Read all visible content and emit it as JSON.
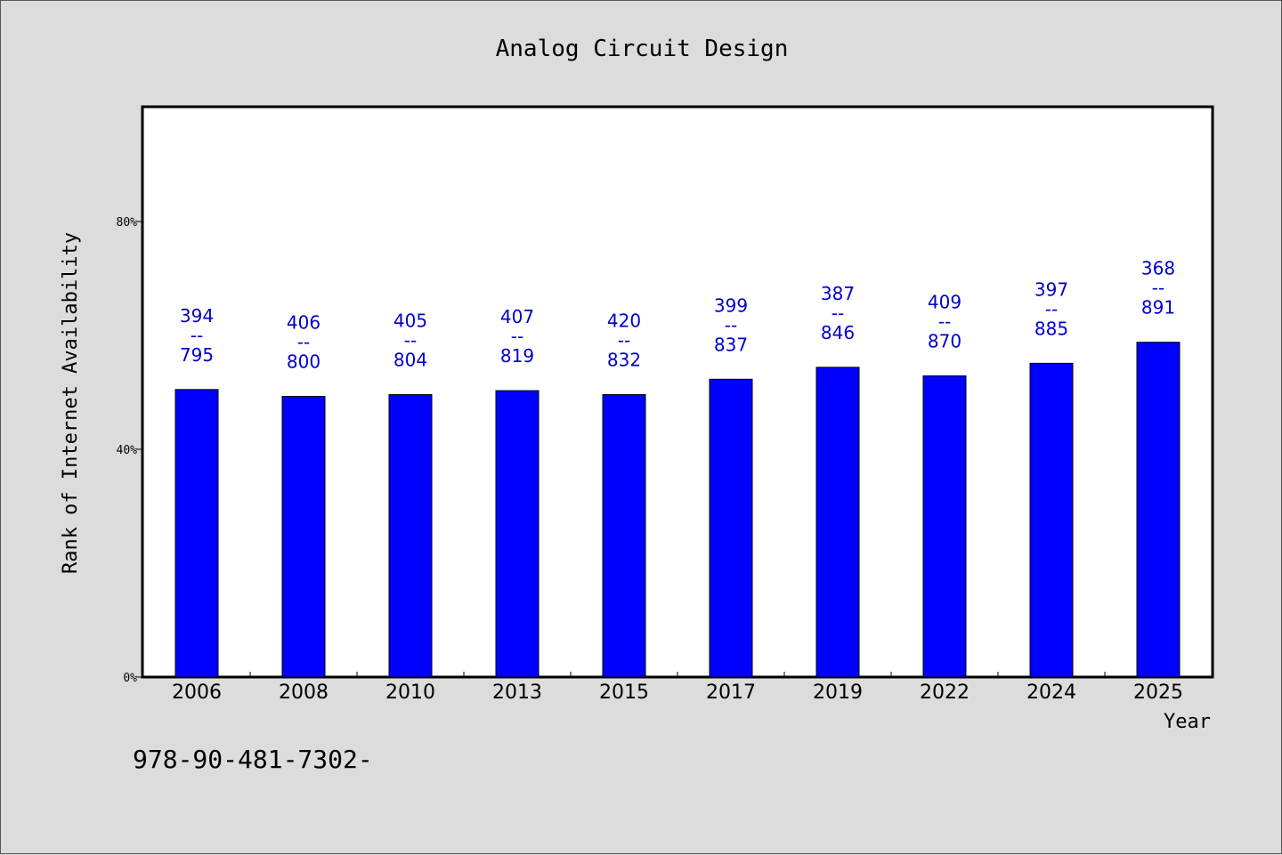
{
  "chart_data": {
    "type": "bar",
    "title": "Analog Circuit Design",
    "xlabel": "Year",
    "ylabel": "Rank of Internet Availability",
    "categories": [
      "2006",
      "2008",
      "2010",
      "2013",
      "2015",
      "2017",
      "2019",
      "2022",
      "2024",
      "2025"
    ],
    "values": [
      50.5,
      49.3,
      49.6,
      50.3,
      49.6,
      52.3,
      54.4,
      52.9,
      55.1,
      58.8
    ],
    "ylim": [
      0,
      100
    ],
    "yticks": [
      {
        "value": 0,
        "label": "0%"
      },
      {
        "value": 40,
        "label": "40%"
      },
      {
        "value": 80,
        "label": "80%"
      }
    ],
    "bar_labels": [
      {
        "top": "394",
        "sep": "--",
        "bottom": "795"
      },
      {
        "top": "406",
        "sep": "--",
        "bottom": "800"
      },
      {
        "top": "405",
        "sep": "--",
        "bottom": "804"
      },
      {
        "top": "407",
        "sep": "--",
        "bottom": "819"
      },
      {
        "top": "420",
        "sep": "--",
        "bottom": "832"
      },
      {
        "top": "399",
        "sep": "--",
        "bottom": "837"
      },
      {
        "top": "387",
        "sep": "--",
        "bottom": "846"
      },
      {
        "top": "409",
        "sep": "--",
        "bottom": "870"
      },
      {
        "top": "397",
        "sep": "--",
        "bottom": "885"
      },
      {
        "top": "368",
        "sep": "--",
        "bottom": "891"
      }
    ],
    "bar_color": "#0000ff",
    "label_color": "#0000cc",
    "grid": false,
    "legend": "none"
  },
  "footer": {
    "isbn": "978-90-481-7302-"
  }
}
